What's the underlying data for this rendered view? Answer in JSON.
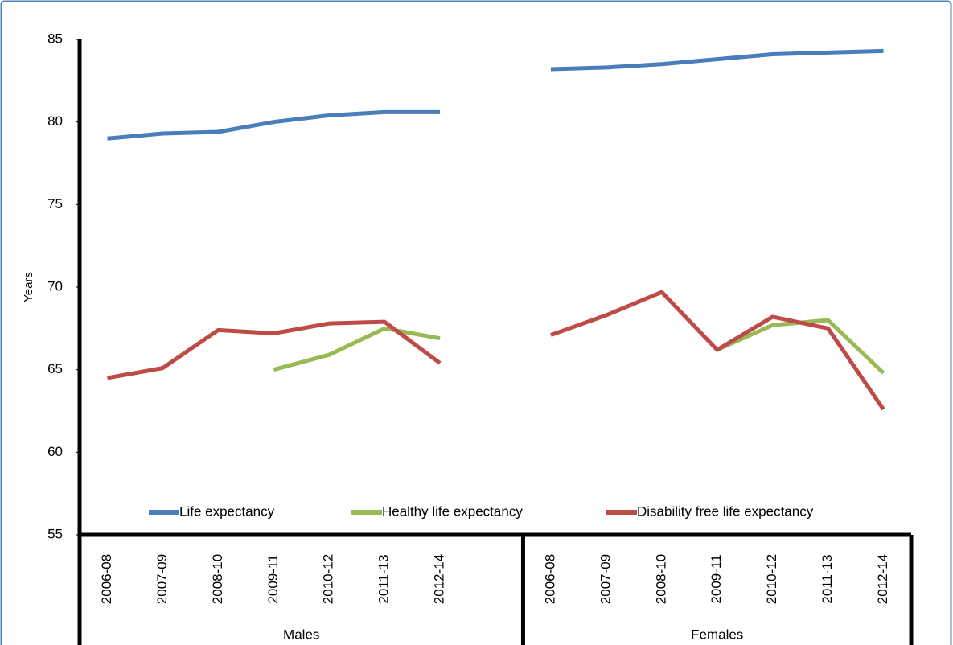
{
  "chart_data": {
    "type": "line",
    "y_label": "Years",
    "categories": [
      "2006-08",
      "2007-09",
      "2008-10",
      "2009-11",
      "2010-12",
      "2011-13",
      "2012-14",
      null,
      "2006-08",
      "2007-09",
      "2008-10",
      "2009-11",
      "2010-12",
      "2011-13",
      "2012-14"
    ],
    "groups": [
      {
        "name": "Males",
        "size": 8
      },
      {
        "name": "Females",
        "size": 7
      }
    ],
    "series": [
      {
        "name": "Life expectancy",
        "color": "#4a7ebb",
        "values": [
          79.0,
          79.3,
          79.4,
          80.0,
          80.4,
          80.6,
          80.6,
          null,
          83.2,
          83.3,
          83.5,
          83.8,
          84.1,
          84.2,
          84.3
        ]
      },
      {
        "name": "Healthy life expectancy",
        "color": "#98b954",
        "values": [
          null,
          null,
          null,
          65.0,
          65.9,
          67.5,
          66.9,
          null,
          null,
          null,
          null,
          66.2,
          67.7,
          68.0,
          64.8
        ]
      },
      {
        "name": "Disability free life expectancy",
        "color": "#be4b48",
        "values": [
          64.5,
          65.1,
          67.4,
          67.2,
          67.8,
          67.9,
          65.4,
          null,
          67.1,
          68.3,
          69.7,
          66.2,
          68.2,
          67.5,
          62.6
        ]
      }
    ],
    "ylim": [
      55,
      85
    ],
    "yticks": [
      55,
      60,
      65,
      70,
      75,
      80,
      85
    ],
    "grid": false,
    "legend": "bottom"
  }
}
